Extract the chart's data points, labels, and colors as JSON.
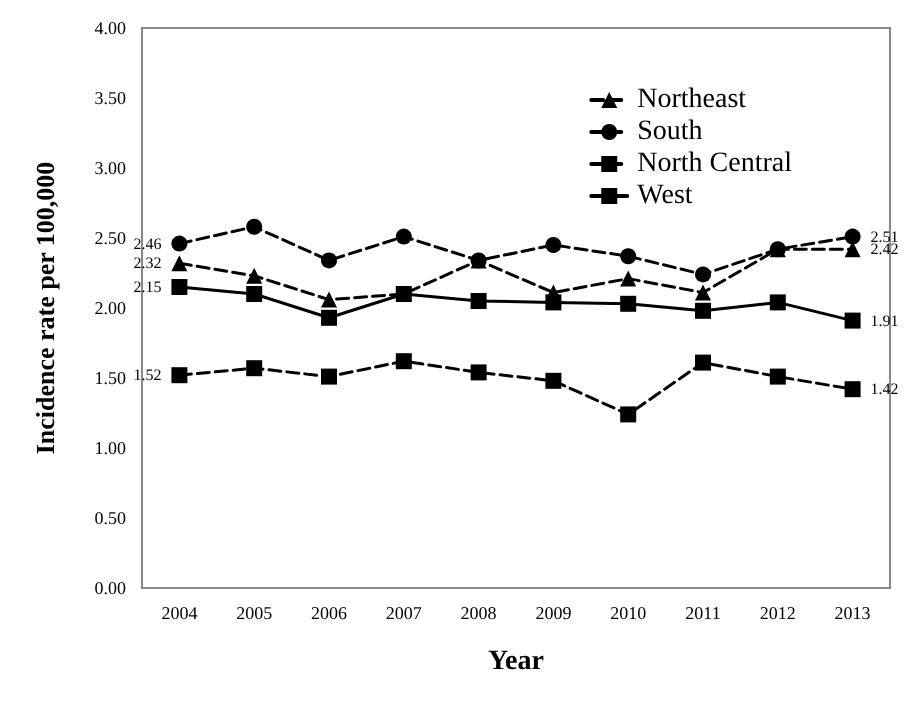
{
  "chart_data": {
    "type": "line",
    "xlabel": "Year",
    "ylabel": "Incidence rate per 100,000",
    "categories": [
      "2004",
      "2005",
      "2006",
      "2007",
      "2008",
      "2009",
      "2010",
      "2011",
      "2012",
      "2013"
    ],
    "series": [
      {
        "name": "Northeast",
        "color": "#000000",
        "marker": "triangle",
        "line_style": "dashed",
        "values": [
          2.32,
          2.23,
          2.06,
          2.1,
          2.34,
          2.11,
          2.21,
          2.11,
          2.42,
          2.42
        ],
        "value_labels": [
          "2.32",
          null,
          null,
          null,
          null,
          null,
          null,
          null,
          null,
          "2.42"
        ]
      },
      {
        "name": "South",
        "color": "#000000",
        "marker": "circle",
        "line_style": "dashed",
        "values": [
          2.46,
          2.58,
          2.34,
          2.51,
          2.34,
          2.45,
          2.37,
          2.24,
          2.42,
          2.51
        ],
        "value_labels": [
          "2.46",
          null,
          null,
          null,
          null,
          null,
          null,
          null,
          null,
          "2.51"
        ]
      },
      {
        "name": "North Central",
        "color": "#000000",
        "marker": "square",
        "line_style": "dashed",
        "values": [
          1.52,
          1.57,
          1.51,
          1.62,
          1.54,
          1.48,
          1.24,
          1.61,
          1.51,
          1.42
        ],
        "value_labels": [
          "1.52",
          null,
          null,
          null,
          null,
          null,
          null,
          null,
          null,
          "1.42"
        ]
      },
      {
        "name": "West",
        "color": "#000000",
        "marker": "square",
        "line_style": "solid",
        "values": [
          2.15,
          2.1,
          1.93,
          2.1,
          2.05,
          2.04,
          2.03,
          1.98,
          2.04,
          1.91
        ],
        "value_labels": [
          "2.15",
          null,
          null,
          null,
          null,
          null,
          null,
          null,
          null,
          "1.91"
        ]
      }
    ],
    "ylim": [
      0,
      4
    ],
    "yticks": [
      {
        "value": 0,
        "label": "0.00"
      },
      {
        "value": 0.5,
        "label": "0.50"
      },
      {
        "value": 1,
        "label": "1.00"
      },
      {
        "value": 1.5,
        "label": "1.50"
      },
      {
        "value": 2,
        "label": "2.00"
      },
      {
        "value": 2.5,
        "label": "2.50"
      },
      {
        "value": 3,
        "label": "3.00"
      },
      {
        "value": 3.5,
        "label": "3.50"
      },
      {
        "value": 4,
        "label": "4.00"
      }
    ],
    "grid": false,
    "legend": "top right"
  }
}
